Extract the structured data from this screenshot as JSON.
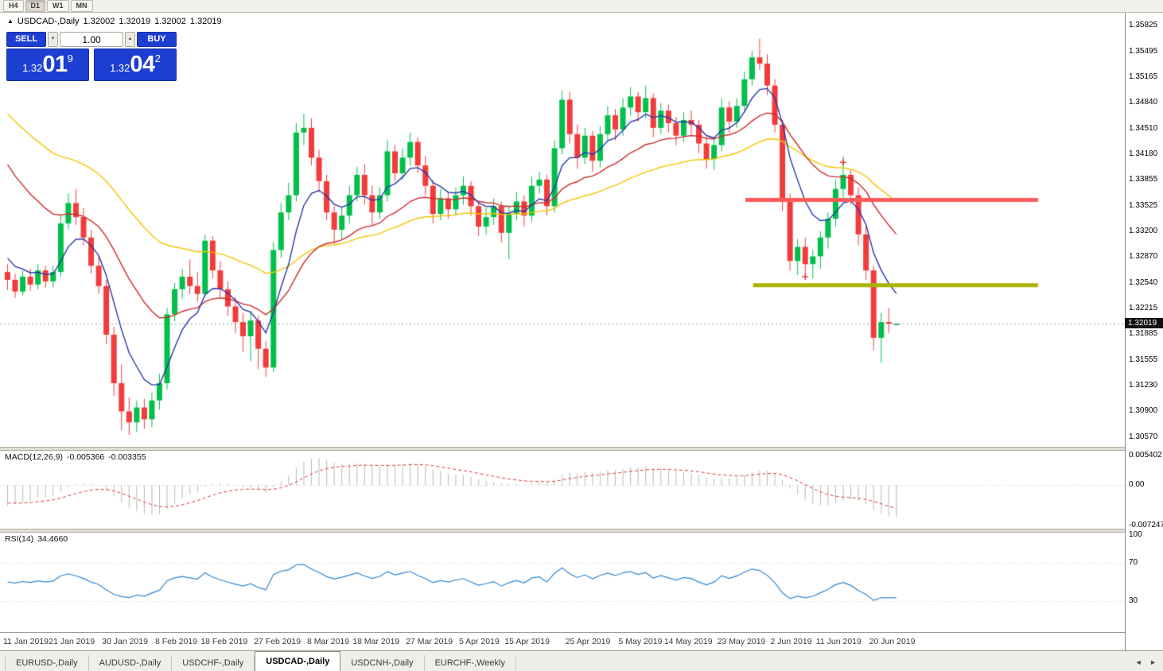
{
  "toolbar": {
    "timeframes": [
      {
        "label": "H4",
        "active": false
      },
      {
        "label": "D1",
        "active": true
      },
      {
        "label": "W1",
        "active": false
      },
      {
        "label": "MN",
        "active": false
      }
    ]
  },
  "icons": {
    "quote_up_icon": "▲",
    "volume_down_icon": "▾",
    "volume_up_icon": "▴",
    "tab_scroll_left_icon": "◄",
    "tab_scroll_right_icon": "►"
  },
  "quote_header": {
    "symbol": "USDCAD-,Daily",
    "open": "1.32002",
    "high": "1.32019",
    "low": "1.32002",
    "close": "1.32019"
  },
  "trade_panel": {
    "sell_label": "SELL",
    "buy_label": "BUY",
    "volume": "1.00",
    "sell_price": {
      "prefix": "1.32",
      "big": "01",
      "sup": "9"
    },
    "buy_price": {
      "prefix": "1.32",
      "big": "04",
      "sup": "2"
    }
  },
  "indicators": {
    "macd_label": "MACD(12,26,9)",
    "macd_value": "-0.005366",
    "macd_signal": "-0.003355",
    "rsi_label": "RSI(14)",
    "rsi_value": "34.4660"
  },
  "tabs": [
    {
      "label": "EURUSD-,Daily",
      "active": false
    },
    {
      "label": "AUDUSD-,Daily",
      "active": false
    },
    {
      "label": "USDCHF-,Daily",
      "active": false
    },
    {
      "label": "USDCAD-,Daily",
      "active": true
    },
    {
      "label": "USDCNH-,Daily",
      "active": false
    },
    {
      "label": "EURCHF-,Weekly",
      "active": false
    }
  ],
  "chart_data": {
    "type": "candlestick",
    "symbol": "USDCAD",
    "period": "Daily",
    "current_price": "1.32019",
    "candle_up_color": "#00bf4a",
    "candle_down_color": "#f23b3b",
    "price_axis_labels": [
      "1.35825",
      "1.35495",
      "1.35165",
      "1.34840",
      "1.34510",
      "1.34180",
      "1.33855",
      "1.33525",
      "1.33200",
      "1.32870",
      "1.32540",
      "1.32215",
      "1.31885",
      "1.31555",
      "1.31230",
      "1.30900",
      "1.30570"
    ],
    "date_labels": [
      {
        "text": "11 Jan 2019",
        "i": 0
      },
      {
        "text": "21 Jan 2019",
        "i": 6
      },
      {
        "text": "30 Jan 2019",
        "i": 13
      },
      {
        "text": "8 Feb 2019",
        "i": 20
      },
      {
        "text": "18 Feb 2019",
        "i": 26
      },
      {
        "text": "27 Feb 2019",
        "i": 33
      },
      {
        "text": "8 Mar 2019",
        "i": 40
      },
      {
        "text": "18 Mar 2019",
        "i": 46
      },
      {
        "text": "27 Mar 2019",
        "i": 53
      },
      {
        "text": "5 Apr 2019",
        "i": 60
      },
      {
        "text": "15 Apr 2019",
        "i": 66
      },
      {
        "text": "25 Apr 2019",
        "i": 74
      },
      {
        "text": "5 May 2019",
        "i": 81
      },
      {
        "text": "14 May 2019",
        "i": 87
      },
      {
        "text": "23 May 2019",
        "i": 94
      },
      {
        "text": "2 Jun 2019",
        "i": 101
      },
      {
        "text": "11 Jun 2019",
        "i": 107
      },
      {
        "text": "20 Jun 2019",
        "i": 114
      }
    ],
    "candles": [
      [
        1.3268,
        1.3278,
        1.3245,
        1.3258
      ],
      [
        1.3258,
        1.3266,
        1.3235,
        1.3243
      ],
      [
        1.3243,
        1.327,
        1.3238,
        1.3262
      ],
      [
        1.3262,
        1.3272,
        1.3244,
        1.3252
      ],
      [
        1.3252,
        1.3278,
        1.3246,
        1.327
      ],
      [
        1.327,
        1.3276,
        1.3248,
        1.3256
      ],
      [
        1.3256,
        1.3276,
        1.3248,
        1.3268
      ],
      [
        1.3268,
        1.334,
        1.3262,
        1.333
      ],
      [
        1.333,
        1.3368,
        1.3322,
        1.3356
      ],
      [
        1.3356,
        1.3374,
        1.3328,
        1.3338
      ],
      [
        1.3338,
        1.335,
        1.3302,
        1.3312
      ],
      [
        1.3312,
        1.3322,
        1.3266,
        1.3276
      ],
      [
        1.3276,
        1.3288,
        1.324,
        1.325
      ],
      [
        1.325,
        1.3258,
        1.3176,
        1.3188
      ],
      [
        1.3188,
        1.3198,
        1.311,
        1.3126
      ],
      [
        1.3126,
        1.315,
        1.3066,
        1.309
      ],
      [
        1.309,
        1.3108,
        1.306,
        1.3076
      ],
      [
        1.3076,
        1.3104,
        1.3064,
        1.3095
      ],
      [
        1.3095,
        1.3106,
        1.3068,
        1.308
      ],
      [
        1.308,
        1.3114,
        1.307,
        1.3104
      ],
      [
        1.3104,
        1.3138,
        1.3092,
        1.3126
      ],
      [
        1.3126,
        1.3222,
        1.3118,
        1.3214
      ],
      [
        1.3214,
        1.3254,
        1.3205,
        1.3246
      ],
      [
        1.3246,
        1.3272,
        1.3234,
        1.3262
      ],
      [
        1.3262,
        1.3284,
        1.324,
        1.325
      ],
      [
        1.325,
        1.3268,
        1.323,
        1.324
      ],
      [
        1.324,
        1.3316,
        1.3236,
        1.3308
      ],
      [
        1.3308,
        1.3314,
        1.326,
        1.327
      ],
      [
        1.327,
        1.3282,
        1.3236,
        1.3246
      ],
      [
        1.3246,
        1.3256,
        1.3212,
        1.3224
      ],
      [
        1.3224,
        1.3236,
        1.319,
        1.3204
      ],
      [
        1.3204,
        1.3216,
        1.3166,
        1.3186
      ],
      [
        1.3186,
        1.3218,
        1.3154,
        1.3206
      ],
      [
        1.3206,
        1.3212,
        1.3144,
        1.317
      ],
      [
        1.317,
        1.318,
        1.3134,
        1.3146
      ],
      [
        1.3146,
        1.3306,
        1.314,
        1.3296
      ],
      [
        1.3296,
        1.3356,
        1.3286,
        1.3344
      ],
      [
        1.3344,
        1.3382,
        1.3334,
        1.3366
      ],
      [
        1.3366,
        1.3458,
        1.3358,
        1.3446
      ],
      [
        1.3446,
        1.347,
        1.343,
        1.3452
      ],
      [
        1.3452,
        1.3464,
        1.3404,
        1.3414
      ],
      [
        1.3414,
        1.3424,
        1.337,
        1.3384
      ],
      [
        1.3384,
        1.3392,
        1.3334,
        1.3344
      ],
      [
        1.3344,
        1.3352,
        1.3304,
        1.3322
      ],
      [
        1.3322,
        1.3352,
        1.331,
        1.334
      ],
      [
        1.334,
        1.3378,
        1.333,
        1.3366
      ],
      [
        1.3366,
        1.3402,
        1.3358,
        1.3392
      ],
      [
        1.3392,
        1.3406,
        1.3354,
        1.3366
      ],
      [
        1.3366,
        1.3378,
        1.3328,
        1.3344
      ],
      [
        1.3344,
        1.3376,
        1.3336,
        1.3366
      ],
      [
        1.3366,
        1.3436,
        1.3358,
        1.3422
      ],
      [
        1.3422,
        1.343,
        1.3384,
        1.3394
      ],
      [
        1.3394,
        1.3426,
        1.3386,
        1.3414
      ],
      [
        1.3414,
        1.3446,
        1.3404,
        1.3434
      ],
      [
        1.3434,
        1.344,
        1.3394,
        1.3404
      ],
      [
        1.3404,
        1.3416,
        1.3366,
        1.3378
      ],
      [
        1.3378,
        1.3386,
        1.333,
        1.3342
      ],
      [
        1.3342,
        1.3374,
        1.3334,
        1.3362
      ],
      [
        1.3362,
        1.337,
        1.3336,
        1.3348
      ],
      [
        1.3348,
        1.3376,
        1.334,
        1.3366
      ],
      [
        1.3366,
        1.339,
        1.3354,
        1.3378
      ],
      [
        1.3378,
        1.3384,
        1.334,
        1.3352
      ],
      [
        1.3352,
        1.3358,
        1.3314,
        1.3326
      ],
      [
        1.3326,
        1.335,
        1.3316,
        1.3338
      ],
      [
        1.3338,
        1.3362,
        1.3328,
        1.3352
      ],
      [
        1.3352,
        1.3358,
        1.3306,
        1.3318
      ],
      [
        1.3318,
        1.3352,
        1.3284,
        1.3342
      ],
      [
        1.3342,
        1.337,
        1.3334,
        1.3358
      ],
      [
        1.3358,
        1.3366,
        1.3326,
        1.334
      ],
      [
        1.334,
        1.339,
        1.3332,
        1.3378
      ],
      [
        1.3378,
        1.3396,
        1.3368,
        1.3386
      ],
      [
        1.3386,
        1.3392,
        1.334,
        1.3352
      ],
      [
        1.3352,
        1.3436,
        1.3344,
        1.3426
      ],
      [
        1.3426,
        1.35,
        1.3418,
        1.3488
      ],
      [
        1.3488,
        1.3498,
        1.3432,
        1.3444
      ],
      [
        1.3444,
        1.3456,
        1.34,
        1.3414
      ],
      [
        1.3414,
        1.3452,
        1.3406,
        1.3442
      ],
      [
        1.3442,
        1.3448,
        1.3396,
        1.341
      ],
      [
        1.341,
        1.3454,
        1.3402,
        1.3444
      ],
      [
        1.3444,
        1.348,
        1.3436,
        1.3468
      ],
      [
        1.3468,
        1.3476,
        1.3436,
        1.345
      ],
      [
        1.345,
        1.349,
        1.3442,
        1.3478
      ],
      [
        1.3478,
        1.3504,
        1.3468,
        1.3492
      ],
      [
        1.3492,
        1.3498,
        1.346,
        1.3472
      ],
      [
        1.3472,
        1.3506,
        1.3464,
        1.349
      ],
      [
        1.349,
        1.3496,
        1.344,
        1.3452
      ],
      [
        1.3452,
        1.3484,
        1.3444,
        1.3474
      ],
      [
        1.3474,
        1.3482,
        1.3446,
        1.3458
      ],
      [
        1.3458,
        1.3466,
        1.343,
        1.3442
      ],
      [
        1.3442,
        1.3472,
        1.3434,
        1.3462
      ],
      [
        1.3462,
        1.3474,
        1.3444,
        1.3456
      ],
      [
        1.3456,
        1.3462,
        1.342,
        1.3432
      ],
      [
        1.3432,
        1.344,
        1.34,
        1.3412
      ],
      [
        1.3412,
        1.344,
        1.3398,
        1.343
      ],
      [
        1.343,
        1.349,
        1.3422,
        1.3478
      ],
      [
        1.3478,
        1.3486,
        1.3446,
        1.346
      ],
      [
        1.346,
        1.349,
        1.3452,
        1.348
      ],
      [
        1.348,
        1.3524,
        1.3472,
        1.3514
      ],
      [
        1.3514,
        1.355,
        1.3506,
        1.3542
      ],
      [
        1.3542,
        1.3566,
        1.3526,
        1.3534
      ],
      [
        1.3534,
        1.3546,
        1.3494,
        1.3506
      ],
      [
        1.3506,
        1.3514,
        1.3446,
        1.3456
      ],
      [
        1.3456,
        1.3462,
        1.3346,
        1.3358
      ],
      [
        1.3358,
        1.3368,
        1.327,
        1.3282
      ],
      [
        1.3282,
        1.331,
        1.3264,
        1.33
      ],
      [
        1.33,
        1.3312,
        1.3266,
        1.3278
      ],
      [
        1.3278,
        1.3296,
        1.326,
        1.3288
      ],
      [
        1.3288,
        1.332,
        1.3272,
        1.3312
      ],
      [
        1.3312,
        1.3344,
        1.3298,
        1.3336
      ],
      [
        1.3336,
        1.3386,
        1.3326,
        1.3374
      ],
      [
        1.3374,
        1.3416,
        1.3358,
        1.3392
      ],
      [
        1.3392,
        1.3398,
        1.3354,
        1.3366
      ],
      [
        1.3366,
        1.3376,
        1.3302,
        1.3316
      ],
      [
        1.3316,
        1.3326,
        1.3258,
        1.327
      ],
      [
        1.327,
        1.3276,
        1.3168,
        1.3184
      ],
      [
        1.3184,
        1.3216,
        1.3152,
        1.3204
      ],
      [
        1.3204,
        1.3222,
        1.319,
        1.3202
      ],
      [
        1.32002,
        1.32019,
        1.32002,
        1.32019
      ]
    ],
    "moving_averages": [
      {
        "name": "ma-slow",
        "color": "#f3c500",
        "period": 44,
        "start": 1.348
      },
      {
        "name": "ma-medium",
        "color": "#cc2a2a",
        "period": 21,
        "start": 1.342
      },
      {
        "name": "ma-fast",
        "color": "#2636a8",
        "period": 7,
        "start": 1.3295
      }
    ],
    "resistance_line": {
      "price": 1.336,
      "color": "#ff5b5b",
      "from_i": 97.5,
      "to_i": 136,
      "width": 5
    },
    "support_line": {
      "price": 1.3251,
      "color": "#a9b400",
      "from_i": 98.5,
      "to_i": 136,
      "width": 5
    },
    "cross_markers": [
      {
        "i": 105,
        "price": 1.3262
      },
      {
        "i": 110,
        "price": 1.3408
      }
    ],
    "macd_panel": {
      "axis_max": "0.005402",
      "axis_zero": "0.00",
      "axis_min": "-0.007247",
      "histogram_color": "#b8b8b8",
      "signal_color": "#d23c3c"
    },
    "rsi_panel": {
      "axis_labels": [
        "100",
        "70",
        "30"
      ],
      "levels": [
        70,
        30
      ],
      "line_color": "#2e86d0"
    }
  }
}
